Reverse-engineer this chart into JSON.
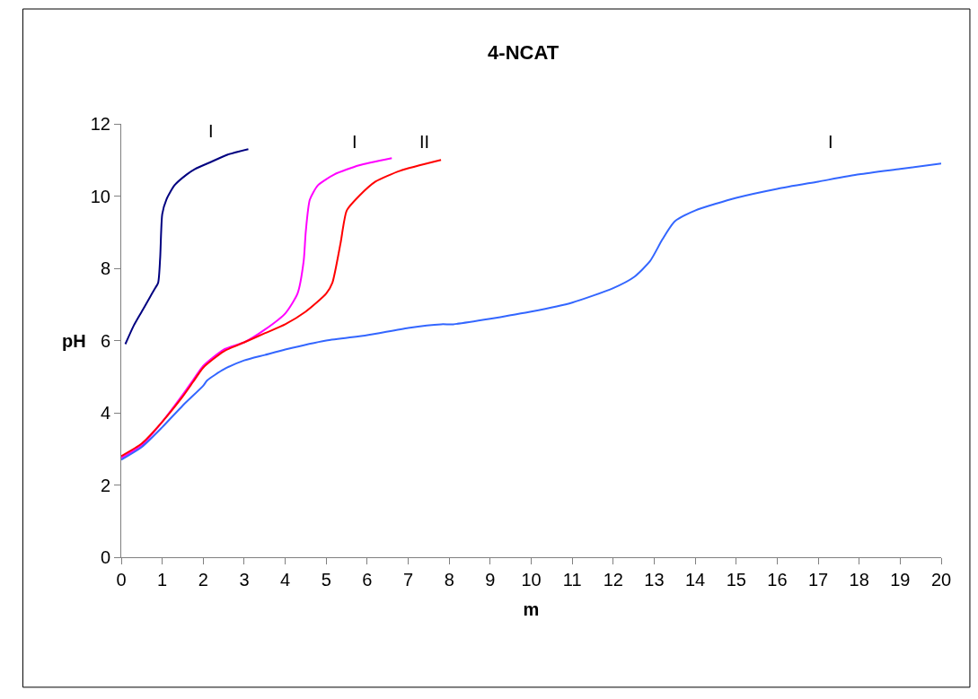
{
  "chart_data": {
    "type": "line",
    "title": "4-NCAT",
    "xlabel": "m",
    "ylabel": "pH",
    "xlim": [
      0,
      20
    ],
    "xticks": [
      0,
      1,
      2,
      3,
      4,
      5,
      6,
      7,
      8,
      9,
      10,
      11,
      12,
      13,
      14,
      15,
      16,
      17,
      18,
      19,
      20
    ],
    "ylim": [
      0,
      12
    ],
    "yticks": [
      0,
      2,
      4,
      6,
      8,
      10,
      12
    ],
    "legend": false,
    "marker": "none",
    "line_style": "solid",
    "series": [
      {
        "name": "I",
        "color": "#000080",
        "x": [
          0.1,
          0.3,
          0.5,
          0.7,
          0.8,
          0.9,
          0.95,
          1.0,
          1.1,
          1.3,
          1.6,
          1.8,
          2.2,
          2.6,
          3.1
        ],
        "values": [
          5.9,
          6.4,
          6.8,
          7.2,
          7.4,
          7.6,
          8.3,
          9.5,
          9.9,
          10.3,
          10.6,
          10.75,
          10.95,
          11.15,
          11.3
        ]
      },
      {
        "name": "I",
        "color": "#ff00ff",
        "x": [
          0,
          0.5,
          1,
          1.5,
          1.75,
          2,
          2.5,
          3,
          3.5,
          4,
          4.3,
          4.45,
          4.5,
          4.6,
          4.8,
          5.2,
          5.8,
          6.6
        ],
        "values": [
          2.75,
          3.1,
          3.75,
          4.5,
          4.9,
          5.3,
          5.75,
          5.95,
          6.3,
          6.75,
          7.3,
          8.2,
          9.0,
          9.9,
          10.3,
          10.6,
          10.85,
          11.05
        ]
      },
      {
        "name": "II",
        "color": "#ff0000",
        "x": [
          0,
          0.5,
          1,
          1.5,
          1.75,
          2,
          2.5,
          3,
          3.5,
          4,
          4.5,
          5,
          5.15,
          5.35,
          5.5,
          5.8,
          6.2,
          6.8,
          7.8
        ],
        "values": [
          2.8,
          3.15,
          3.75,
          4.45,
          4.85,
          5.25,
          5.7,
          5.95,
          6.2,
          6.45,
          6.8,
          7.3,
          7.6,
          8.7,
          9.6,
          10.0,
          10.4,
          10.7,
          11.0
        ]
      },
      {
        "name": "I",
        "color": "#3366ff",
        "x": [
          0,
          0.5,
          1,
          1.5,
          2,
          2.1,
          2.5,
          3,
          3.5,
          4,
          5,
          6,
          7,
          7.8,
          8.1,
          9,
          9.5,
          10,
          11,
          12,
          12.5,
          12.9,
          13.2,
          13.5,
          14,
          15,
          16,
          17,
          18,
          19,
          20
        ],
        "values": [
          2.7,
          3.05,
          3.6,
          4.2,
          4.75,
          4.9,
          5.2,
          5.45,
          5.6,
          5.75,
          6.0,
          6.15,
          6.35,
          6.45,
          6.45,
          6.6,
          6.7,
          6.8,
          7.05,
          7.45,
          7.75,
          8.2,
          8.8,
          9.3,
          9.6,
          9.95,
          10.2,
          10.4,
          10.6,
          10.75,
          10.9
        ]
      }
    ]
  }
}
